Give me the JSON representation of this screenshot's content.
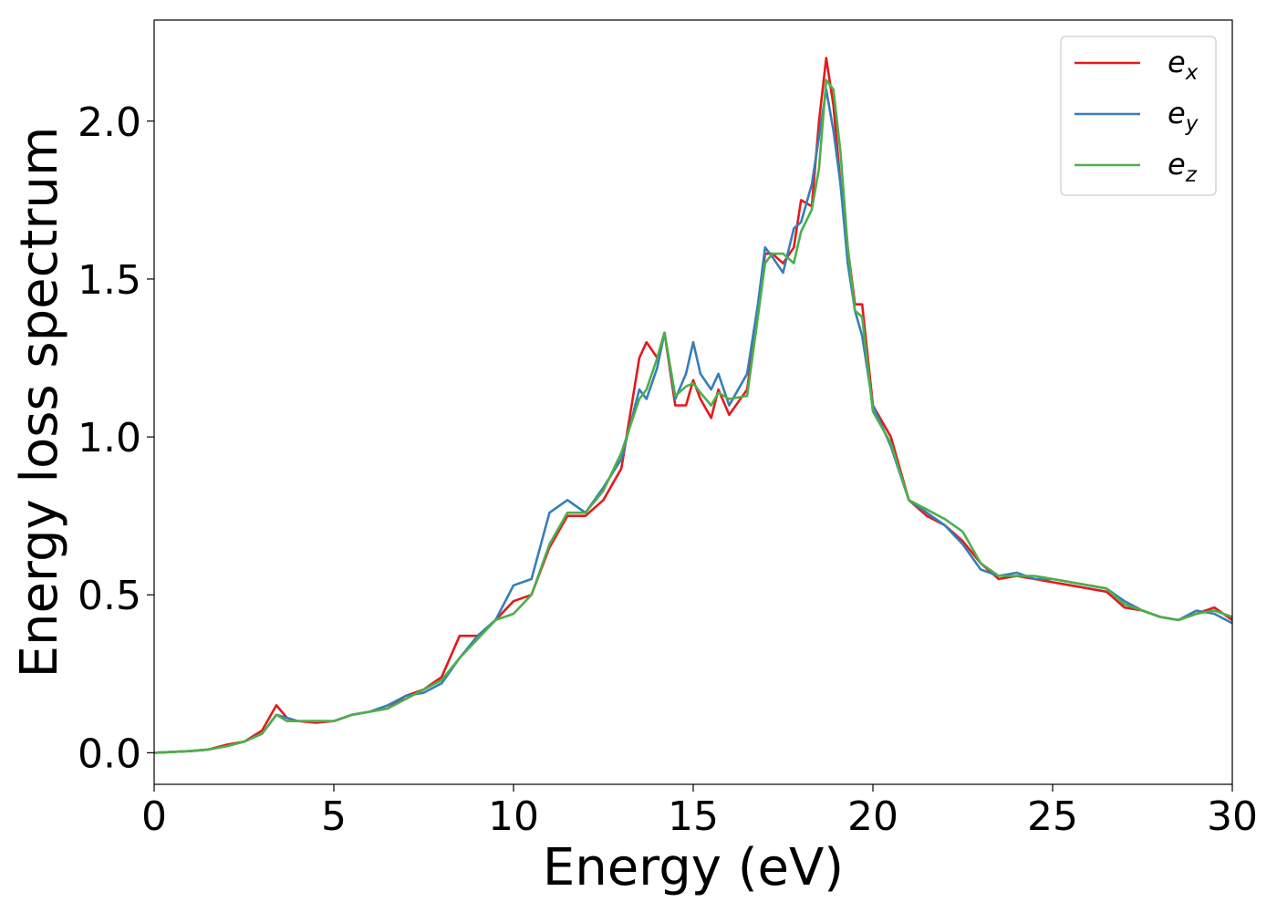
{
  "chart_data": {
    "type": "line",
    "title": "",
    "xlabel": "Energy (eV)",
    "ylabel": "Energy loss spectrum",
    "xlim": [
      0,
      30
    ],
    "ylim": [
      -0.1,
      2.32
    ],
    "xticks": [
      0,
      5,
      10,
      15,
      20,
      25,
      30
    ],
    "xtick_labels": [
      "0",
      "5",
      "10",
      "15",
      "20",
      "25",
      "30"
    ],
    "yticks": [
      0.0,
      0.5,
      1.0,
      1.5,
      2.0
    ],
    "ytick_labels": [
      "0.0",
      "0.5",
      "1.0",
      "1.5",
      "2.0"
    ],
    "grid": false,
    "legend_position": "top-right",
    "x": [
      0,
      1,
      1.5,
      2,
      2.5,
      3,
      3.4,
      3.7,
      4,
      4.5,
      5,
      5.5,
      6,
      6.5,
      7,
      7.5,
      8,
      8.5,
      9,
      9.5,
      10,
      10.5,
      11,
      11.5,
      12,
      12.5,
      13,
      13.5,
      13.7,
      14,
      14.2,
      14.5,
      14.8,
      15,
      15.2,
      15.5,
      15.7,
      16,
      16.5,
      16.8,
      17,
      17.2,
      17.5,
      17.8,
      18,
      18.3,
      18.5,
      18.7,
      18.9,
      19.1,
      19.3,
      19.5,
      19.7,
      20,
      20.5,
      21,
      21.5,
      22,
      22.5,
      23,
      23.5,
      24,
      24.5,
      25,
      25.5,
      26,
      26.5,
      27,
      27.5,
      28,
      28.5,
      29,
      29.5,
      30
    ],
    "series": [
      {
        "name": "e",
        "subscript": "x",
        "color": "#e41a1c",
        "values": [
          0.0,
          0.005,
          0.01,
          0.025,
          0.035,
          0.07,
          0.15,
          0.11,
          0.1,
          0.095,
          0.1,
          0.12,
          0.13,
          0.14,
          0.18,
          0.2,
          0.24,
          0.37,
          0.37,
          0.42,
          0.48,
          0.5,
          0.65,
          0.75,
          0.75,
          0.8,
          0.9,
          1.25,
          1.3,
          1.25,
          1.33,
          1.1,
          1.1,
          1.18,
          1.12,
          1.06,
          1.15,
          1.07,
          1.15,
          1.4,
          1.58,
          1.58,
          1.55,
          1.6,
          1.75,
          1.73,
          2.0,
          2.2,
          2.05,
          1.8,
          1.6,
          1.42,
          1.42,
          1.1,
          1.0,
          0.8,
          0.75,
          0.72,
          0.67,
          0.6,
          0.55,
          0.56,
          0.55,
          0.54,
          0.53,
          0.52,
          0.51,
          0.46,
          0.45,
          0.43,
          0.42,
          0.44,
          0.46,
          0.42
        ]
      },
      {
        "name": "e",
        "subscript": "y",
        "color": "#377eb8",
        "values": [
          0.0,
          0.005,
          0.01,
          0.02,
          0.035,
          0.06,
          0.12,
          0.11,
          0.1,
          0.1,
          0.1,
          0.12,
          0.13,
          0.15,
          0.18,
          0.19,
          0.22,
          0.3,
          0.37,
          0.42,
          0.53,
          0.55,
          0.76,
          0.8,
          0.76,
          0.84,
          0.93,
          1.15,
          1.12,
          1.22,
          1.33,
          1.12,
          1.2,
          1.3,
          1.2,
          1.15,
          1.2,
          1.1,
          1.2,
          1.42,
          1.6,
          1.57,
          1.52,
          1.66,
          1.68,
          1.8,
          1.95,
          2.1,
          1.97,
          1.8,
          1.55,
          1.4,
          1.32,
          1.1,
          0.97,
          0.8,
          0.76,
          0.72,
          0.66,
          0.58,
          0.56,
          0.57,
          0.55,
          0.55,
          0.54,
          0.53,
          0.52,
          0.48,
          0.45,
          0.43,
          0.42,
          0.45,
          0.44,
          0.41
        ]
      },
      {
        "name": "e",
        "subscript": "z",
        "color": "#4daf4a",
        "values": [
          0.0,
          0.005,
          0.01,
          0.02,
          0.035,
          0.06,
          0.12,
          0.1,
          0.1,
          0.1,
          0.1,
          0.12,
          0.13,
          0.14,
          0.17,
          0.2,
          0.23,
          0.3,
          0.36,
          0.42,
          0.44,
          0.5,
          0.66,
          0.76,
          0.76,
          0.83,
          0.95,
          1.12,
          1.15,
          1.25,
          1.33,
          1.13,
          1.16,
          1.17,
          1.14,
          1.1,
          1.14,
          1.12,
          1.13,
          1.38,
          1.55,
          1.58,
          1.58,
          1.55,
          1.65,
          1.72,
          1.85,
          2.13,
          2.1,
          1.9,
          1.6,
          1.4,
          1.38,
          1.08,
          0.98,
          0.8,
          0.77,
          0.74,
          0.7,
          0.6,
          0.56,
          0.56,
          0.56,
          0.55,
          0.54,
          0.53,
          0.52,
          0.47,
          0.45,
          0.43,
          0.42,
          0.44,
          0.45,
          0.43
        ]
      }
    ]
  }
}
